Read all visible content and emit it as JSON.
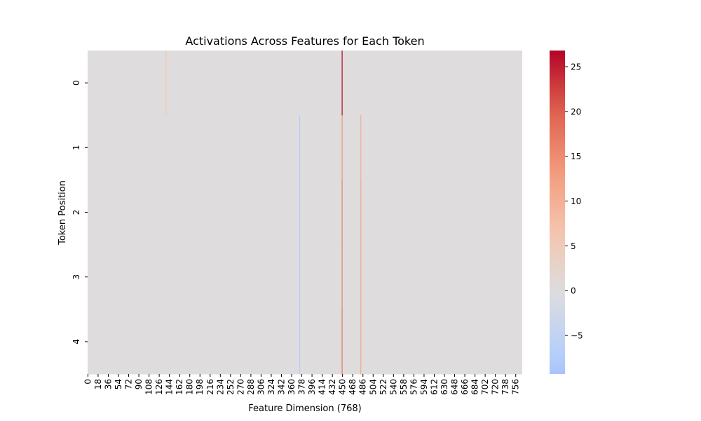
{
  "chart_data": {
    "type": "heatmap",
    "title": "Activations Across Features for Each Token",
    "xlabel": "Feature Dimension (768)",
    "ylabel": "Token Position",
    "rows": [
      "0",
      "1",
      "2",
      "3",
      "4"
    ],
    "n_columns": 768,
    "x_ticks": [
      0,
      18,
      36,
      54,
      72,
      90,
      108,
      126,
      144,
      162,
      180,
      198,
      216,
      234,
      252,
      270,
      288,
      306,
      324,
      342,
      360,
      378,
      396,
      414,
      432,
      450,
      468,
      486,
      504,
      522,
      540,
      558,
      576,
      594,
      612,
      630,
      648,
      666,
      684,
      702,
      720,
      738,
      756
    ],
    "colormap": "coolwarm",
    "color_center": 0,
    "vmin": -9.3,
    "vmax": 26.8,
    "colorbar_ticks": [
      -5,
      0,
      5,
      10,
      15,
      20,
      25
    ],
    "colorbar_tick_labels": [
      "−5",
      "0",
      "5",
      "10",
      "15",
      "20",
      "25"
    ],
    "background_value": 0.2,
    "notable_cells": [
      {
        "row": 0,
        "feature": 138,
        "value": 6.0
      },
      {
        "row": 0,
        "feature": 449,
        "value": 26.8
      },
      {
        "row": 1,
        "feature": 374,
        "value": -7.5
      },
      {
        "row": 2,
        "feature": 374,
        "value": -7.5
      },
      {
        "row": 3,
        "feature": 374,
        "value": -7.5
      },
      {
        "row": 4,
        "feature": 374,
        "value": -7.5
      },
      {
        "row": 1,
        "feature": 449,
        "value": 14.0
      },
      {
        "row": 2,
        "feature": 449,
        "value": 16.0
      },
      {
        "row": 3,
        "feature": 449,
        "value": 16.0
      },
      {
        "row": 4,
        "feature": 449,
        "value": 17.5
      },
      {
        "row": 1,
        "feature": 482,
        "value": 10.0
      },
      {
        "row": 2,
        "feature": 482,
        "value": 11.0
      },
      {
        "row": 3,
        "feature": 482,
        "value": 11.0
      },
      {
        "row": 4,
        "feature": 482,
        "value": 11.0
      }
    ]
  }
}
